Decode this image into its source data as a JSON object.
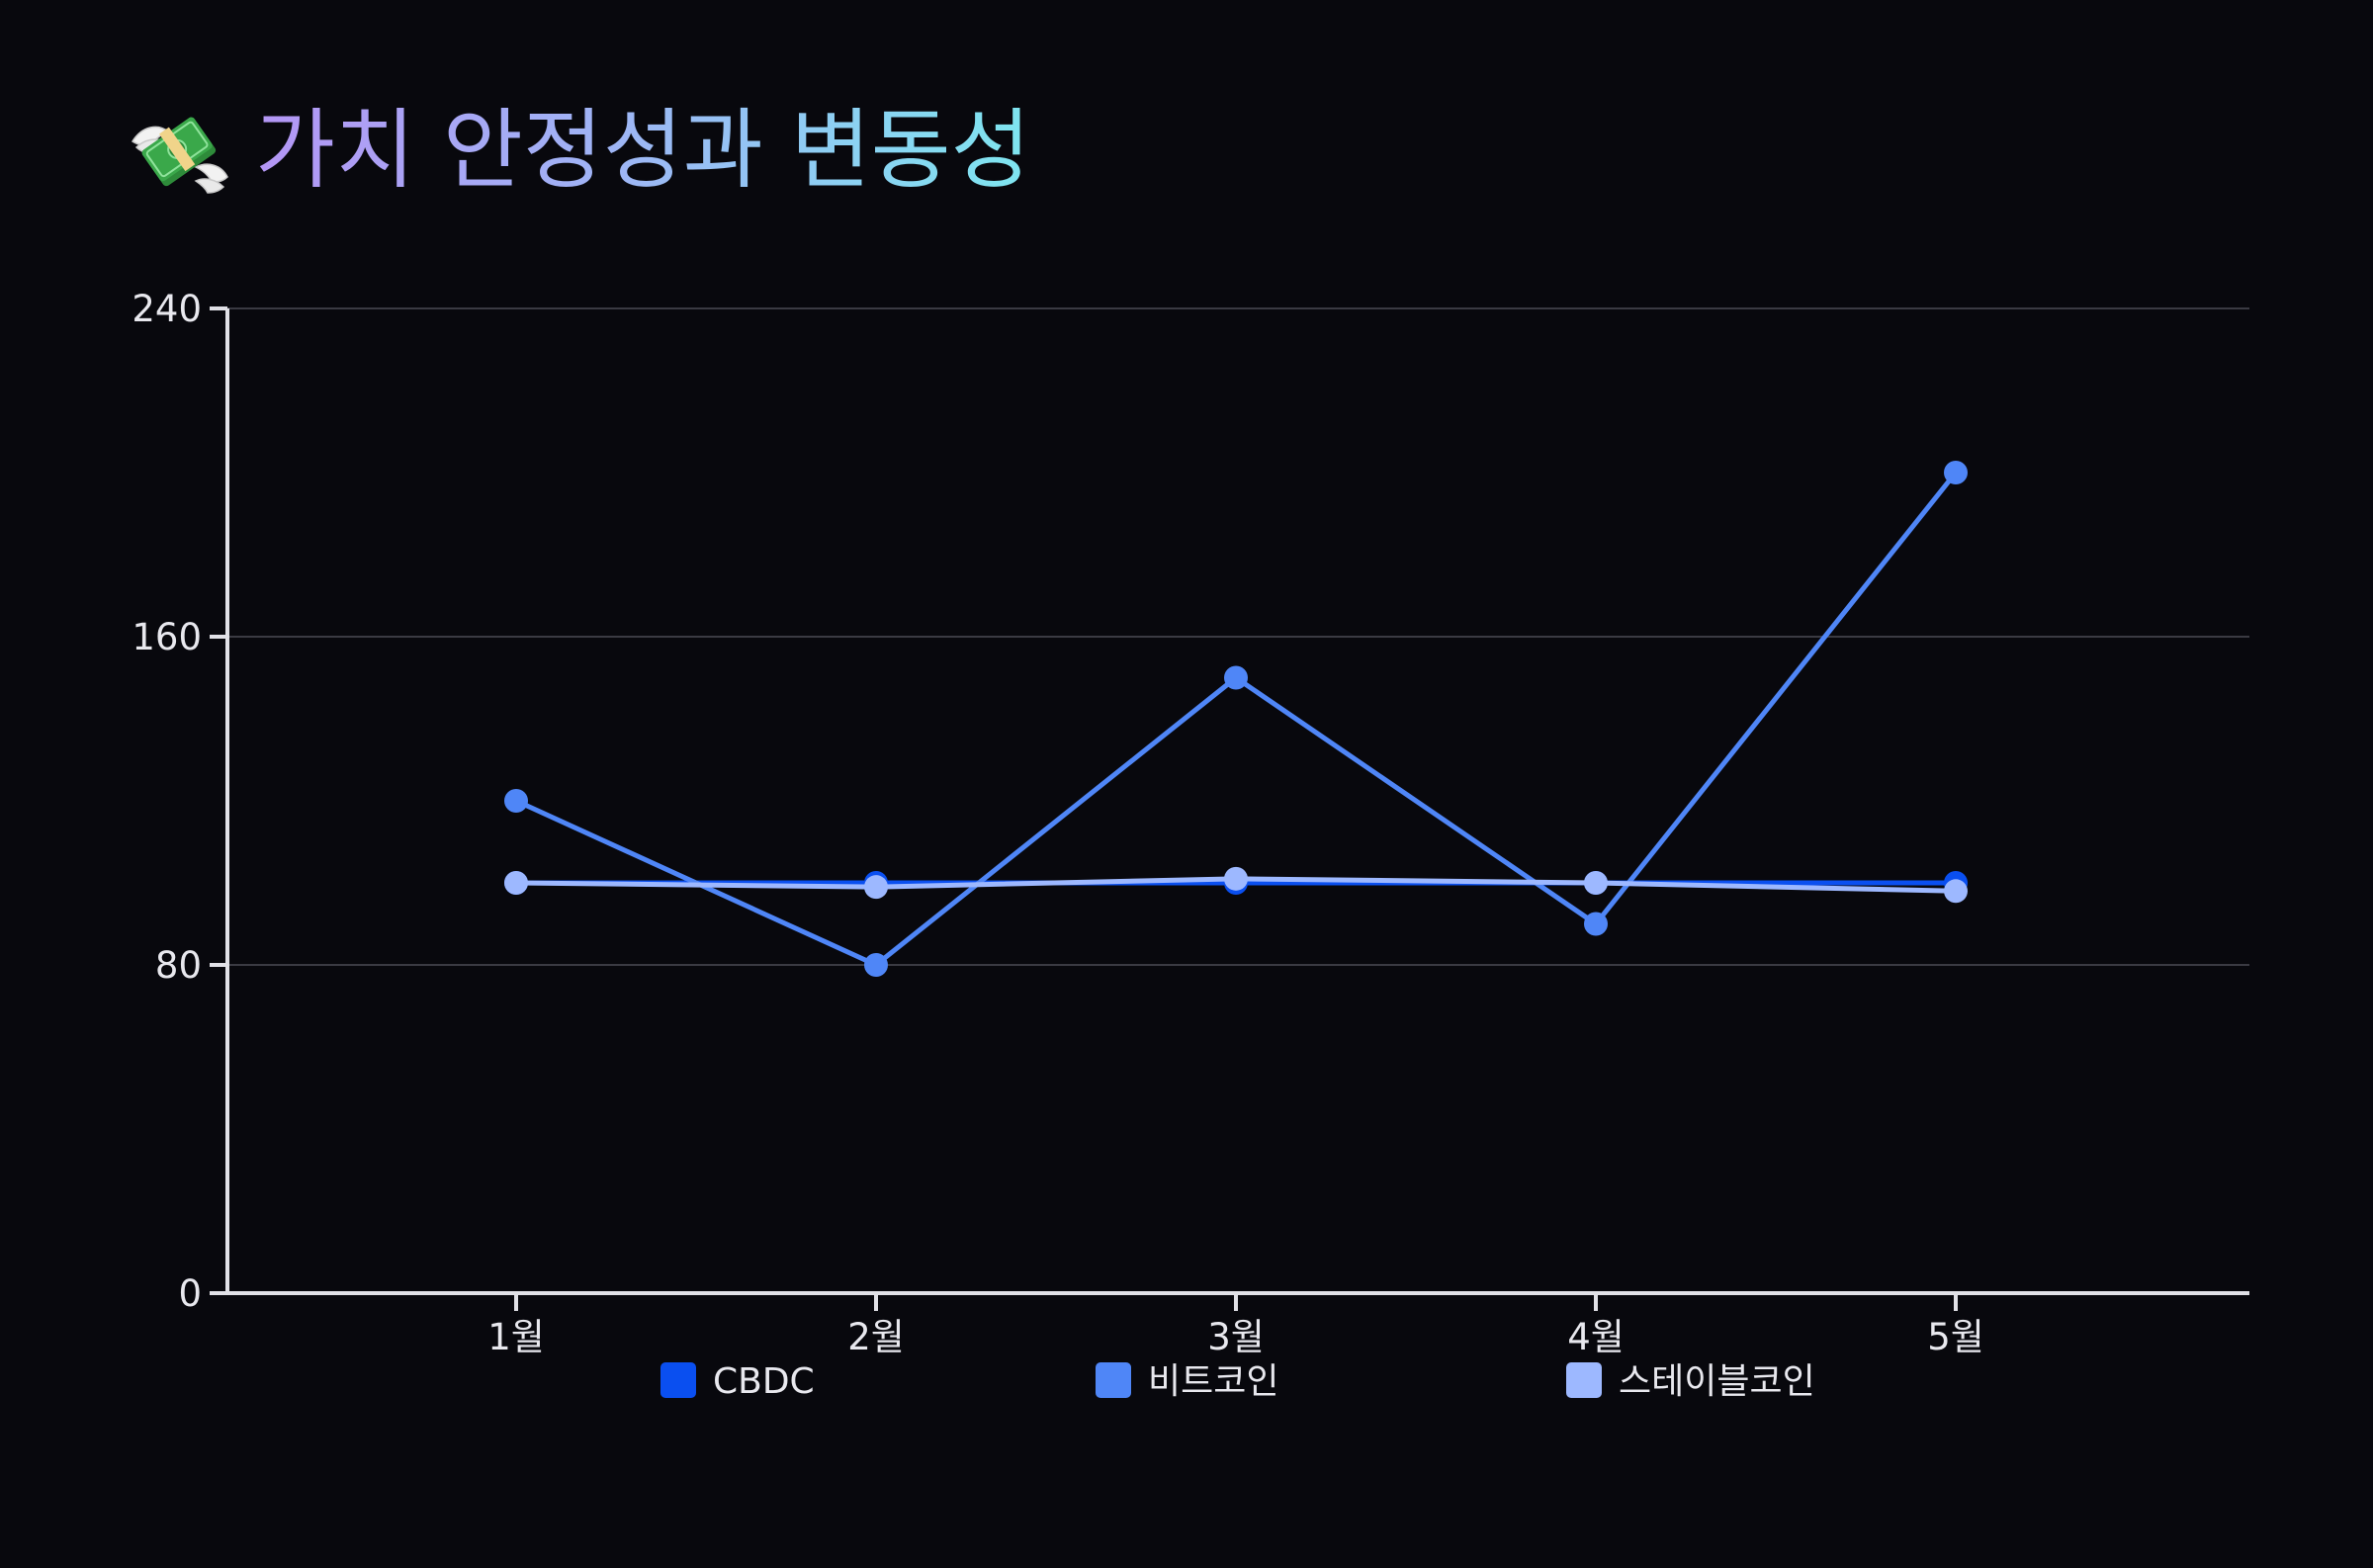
{
  "header": {
    "icon": "money-with-wings-icon",
    "title": "가치 안정성과 변동성"
  },
  "colors": {
    "background": "#08080d",
    "grid": "#3a3a42",
    "axis": "#e0e0e6"
  },
  "chart_data": {
    "type": "line",
    "title": "가치 안정성과 변동성",
    "xlabel": "",
    "ylabel": "",
    "categories": [
      "1월",
      "2월",
      "3월",
      "4월",
      "5월"
    ],
    "ylim": [
      0,
      240
    ],
    "yticks": [
      0,
      80,
      160,
      240
    ],
    "grid": true,
    "legend_position": "bottom",
    "series": [
      {
        "name": "CBDC",
        "color": "#0a4ff0",
        "values": [
          100,
          100,
          100,
          100,
          100
        ]
      },
      {
        "name": "비트코인",
        "color": "#4f86f7",
        "values": [
          120,
          80,
          150,
          90,
          200
        ]
      },
      {
        "name": "스테이블코인",
        "color": "#9db8ff",
        "values": [
          100,
          99,
          101,
          100,
          98
        ]
      }
    ]
  }
}
